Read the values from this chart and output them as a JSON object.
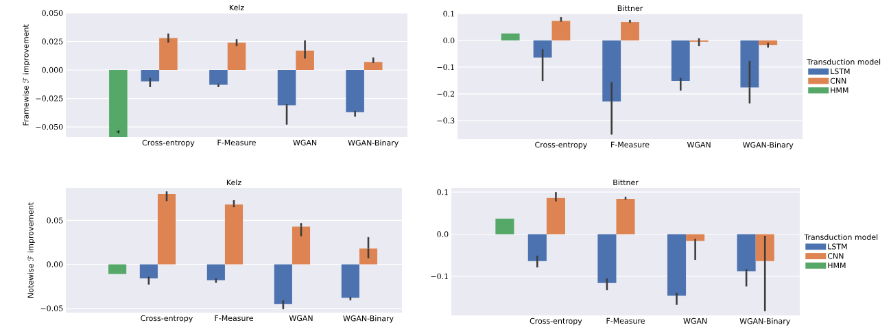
{
  "chart_data": [
    {
      "type": "bar",
      "title": "Kelz",
      "ylabel": "Framewise ℱ improvement",
      "categories": [
        null,
        "Cross-entropy",
        "F-Measure",
        "WGAN",
        "WGAN-Binary"
      ],
      "ylim": [
        -0.059,
        0.05
      ],
      "grid": "y",
      "yticks": [
        {
          "value": -0.05,
          "label": "−0.050"
        },
        {
          "value": -0.025,
          "label": "−0.025"
        },
        {
          "value": 0,
          "label": "0.000"
        },
        {
          "value": 0.025,
          "label": "0.025"
        },
        {
          "value": 0.05,
          "label": "0.050"
        }
      ],
      "series": [
        {
          "color": "#4c72b0",
          "values": [
            null,
            -0.01,
            -0.013,
            -0.031,
            -0.037
          ],
          "errors": [
            null,
            [
              -0.015,
              -0.007
            ],
            [
              -0.015,
              -0.012
            ],
            [
              -0.048,
              -0.03
            ],
            [
              -0.041,
              -0.036
            ]
          ]
        },
        {
          "color": "#dd8452",
          "values": [
            null,
            0.028,
            0.024,
            0.017,
            0.007
          ],
          "errors": [
            null,
            [
              0.024,
              0.032
            ],
            [
              0.021,
              0.027
            ],
            [
              0.01,
              0.026
            ],
            [
              0.006,
              0.011
            ]
          ]
        },
        {
          "color": "#55a868",
          "values": [
            -0.059,
            null,
            null,
            null,
            null
          ]
        }
      ],
      "annotations": [
        "*"
      ]
    },
    {
      "type": "bar",
      "title": "Bittner",
      "categories": [
        null,
        "Cross-entropy",
        "F-Measure",
        "WGAN",
        "WGAN-Binary"
      ],
      "ylim": [
        -0.37,
        0.1
      ],
      "grid": "y",
      "legend": "right",
      "legend_title": "Transduction model",
      "yticks": [
        {
          "value": -0.3,
          "label": "−0.3"
        },
        {
          "value": -0.2,
          "label": "−0.2"
        },
        {
          "value": -0.1,
          "label": "−0.1"
        },
        {
          "value": 0,
          "label": "0.0"
        },
        {
          "value": 0.1,
          "label": "0.1"
        }
      ],
      "series": [
        {
          "name": "LSTM",
          "color": "#4c72b0",
          "values": [
            null,
            -0.064,
            -0.229,
            -0.152,
            -0.176
          ],
          "errors": [
            null,
            [
              -0.152,
              -0.033
            ],
            [
              -0.353,
              -0.156
            ],
            [
              -0.188,
              -0.141
            ],
            [
              -0.236,
              -0.077
            ]
          ]
        },
        {
          "name": "CNN",
          "color": "#dd8452",
          "values": [
            null,
            0.073,
            0.069,
            -0.005,
            -0.018
          ],
          "errors": [
            null,
            [
              0.07,
              0.087
            ],
            [
              0.066,
              0.077
            ],
            [
              -0.021,
              0.008
            ],
            [
              -0.027,
              -0.009
            ]
          ]
        },
        {
          "name": "HMM",
          "color": "#55a868",
          "values": [
            0.026,
            null,
            null,
            null,
            null
          ]
        }
      ]
    },
    {
      "type": "bar",
      "title": "Kelz",
      "ylabel": "Notewise ℱ improvement",
      "categories": [
        null,
        "Cross-entropy",
        "F-Measure",
        "WGAN",
        "WGAN-Binary"
      ],
      "ylim": [
        -0.055,
        0.087
      ],
      "grid": "y",
      "yticks": [
        {
          "value": -0.05,
          "label": "−0.05"
        },
        {
          "value": 0,
          "label": "0.00"
        },
        {
          "value": 0.05,
          "label": "0.05"
        }
      ],
      "series": [
        {
          "color": "#4c72b0",
          "values": [
            null,
            -0.016,
            -0.018,
            -0.045,
            -0.038
          ],
          "errors": [
            null,
            [
              -0.023,
              -0.014
            ],
            [
              -0.021,
              -0.016
            ],
            [
              -0.051,
              -0.041
            ],
            [
              -0.041,
              -0.037
            ]
          ]
        },
        {
          "color": "#dd8452",
          "values": [
            null,
            0.08,
            0.068,
            0.043,
            0.018
          ],
          "errors": [
            null,
            [
              0.072,
              0.083
            ],
            [
              0.065,
              0.073
            ],
            [
              0.032,
              0.047
            ],
            [
              0.007,
              0.031
            ]
          ]
        },
        {
          "color": "#55a868",
          "values": [
            -0.011,
            null,
            null,
            null,
            null
          ]
        }
      ]
    },
    {
      "type": "bar",
      "title": "Bittner",
      "categories": [
        null,
        "Cross-entropy",
        "F-Measure",
        "WGAN",
        "WGAN-Binary"
      ],
      "ylim": [
        -0.193,
        0.11
      ],
      "grid": "y",
      "legend": "right",
      "legend_title": "Transduction model",
      "yticks": [
        {
          "value": -0.1,
          "label": "−0.1"
        },
        {
          "value": 0,
          "label": "0.0"
        },
        {
          "value": 0.1,
          "label": "0.1"
        }
      ],
      "series": [
        {
          "name": "LSTM",
          "color": "#4c72b0",
          "values": [
            null,
            -0.064,
            -0.116,
            -0.146,
            -0.088
          ],
          "errors": [
            null,
            [
              -0.079,
              -0.051
            ],
            [
              -0.133,
              -0.105
            ],
            [
              -0.168,
              -0.139
            ],
            [
              -0.124,
              -0.083
            ]
          ]
        },
        {
          "name": "CNN",
          "color": "#dd8452",
          "values": [
            null,
            0.086,
            0.084,
            -0.016,
            -0.064
          ],
          "errors": [
            null,
            [
              0.078,
              0.1
            ],
            [
              0.082,
              0.089
            ],
            [
              -0.061,
              -0.011
            ],
            [
              -0.183,
              -0.004
            ]
          ]
        },
        {
          "name": "HMM",
          "color": "#55a868",
          "values": [
            0.037,
            null,
            null,
            null,
            null
          ]
        }
      ]
    }
  ]
}
